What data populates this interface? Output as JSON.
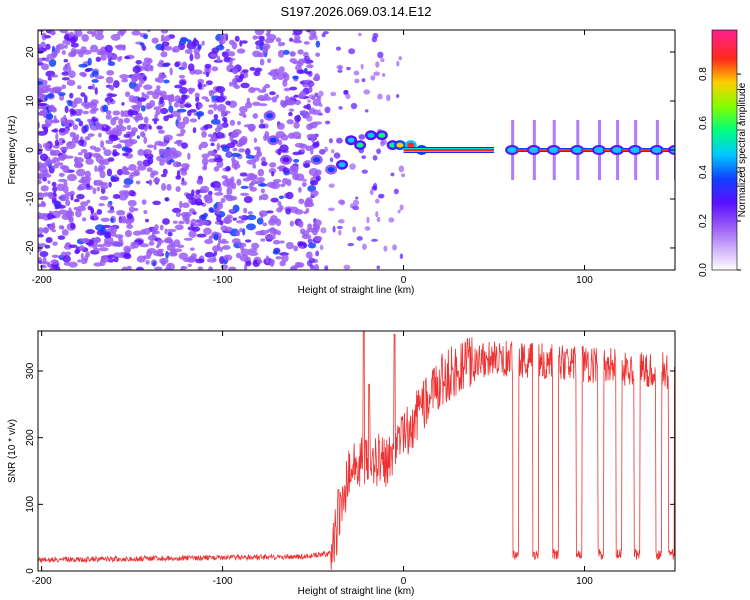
{
  "title": "S197.2026.069.03.14.E12",
  "chart_data": [
    {
      "type": "heatmap",
      "xlabel": "Height of straight line (km)",
      "ylabel": "Frequency (Hz)",
      "xlim": [
        -202,
        150
      ],
      "ylim": [
        -24.5,
        24.5
      ],
      "xticks": [
        -200,
        -100,
        0,
        100
      ],
      "yticks": [
        -20,
        -10,
        0,
        10,
        20
      ],
      "colorbar": {
        "label": "Normalized spectral amplitude",
        "range": [
          0,
          0.98
        ],
        "ticks": [
          0.0,
          0.2,
          0.4,
          0.6,
          0.8
        ],
        "colors": [
          "#ffffff",
          "#c8a8f8",
          "#7020f0",
          "#1030ff",
          "#00d8ff",
          "#00ff60",
          "#d8f000",
          "#ff2020",
          "#ff20a0"
        ]
      },
      "noise_region_km": [
        -202,
        -55
      ],
      "tone_segment_km": [
        0,
        50
      ],
      "tone_frequency_hz": 0,
      "features": [
        {
          "x": -74,
          "y": 7,
          "amp": 0.35
        },
        {
          "x": -72,
          "y": 2,
          "amp": 0.3
        },
        {
          "x": -65,
          "y": -2,
          "amp": 0.25
        },
        {
          "x": -48,
          "y": -2,
          "amp": 0.3
        },
        {
          "x": -40,
          "y": -4,
          "amp": 0.3
        },
        {
          "x": -34,
          "y": -3,
          "amp": 0.45
        },
        {
          "x": -29,
          "y": 2,
          "amp": 0.4
        },
        {
          "x": -24,
          "y": 1,
          "amp": 0.55
        },
        {
          "x": -18,
          "y": 3,
          "amp": 0.45
        },
        {
          "x": -12,
          "y": 3,
          "amp": 0.5
        },
        {
          "x": -6,
          "y": 1,
          "amp": 0.55
        },
        {
          "x": -2,
          "y": 1,
          "amp": 0.7
        },
        {
          "x": 4,
          "y": 1,
          "amp": 0.85
        },
        {
          "x": 10,
          "y": 0,
          "amp": 0.8
        }
      ],
      "pulses_km": [
        60,
        72,
        83,
        96,
        108,
        118,
        128,
        140,
        150
      ]
    },
    {
      "type": "line",
      "xlabel": "Height of straight line (km)",
      "ylabel": "SNR (10 * v/v)",
      "xlim": [
        -202,
        150
      ],
      "ylim": [
        0,
        360
      ],
      "xticks": [
        -200,
        -100,
        0,
        100
      ],
      "yticks": [
        0,
        100,
        200,
        300
      ],
      "color": "#ee3030",
      "envelope": [
        {
          "x": -202,
          "y": 15
        },
        {
          "x": -55,
          "y": 20
        },
        {
          "x": -40,
          "y": 25
        },
        {
          "x": -30,
          "y": 150
        },
        {
          "x": -20,
          "y": 170
        },
        {
          "x": -10,
          "y": 165
        },
        {
          "x": 0,
          "y": 200
        },
        {
          "x": 10,
          "y": 245
        },
        {
          "x": 20,
          "y": 285
        },
        {
          "x": 30,
          "y": 305
        },
        {
          "x": 40,
          "y": 318
        },
        {
          "x": 60,
          "y": 318
        },
        {
          "x": 150,
          "y": 300
        }
      ],
      "spikes": [
        {
          "x": -36,
          "y": 122
        },
        {
          "x": -22,
          "y": 360
        },
        {
          "x": -19,
          "y": 280
        },
        {
          "x": -5,
          "y": 355
        }
      ],
      "dropouts_km": [
        62,
        73,
        84,
        97,
        109,
        119,
        129,
        141,
        148
      ],
      "dropout_level": 25
    }
  ]
}
